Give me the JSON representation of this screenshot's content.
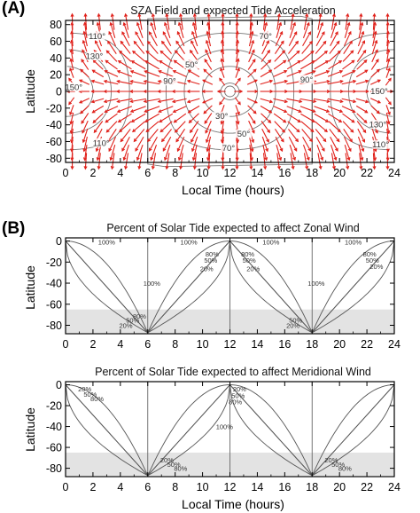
{
  "panel_a": {
    "letter": "(A)",
    "chart_data": {
      "type": "vector-contour",
      "title": "SZA Field and expected Tide Acceleration",
      "xlabel": "Local Time (hours)",
      "ylabel": "Latitude",
      "xlim": [
        0,
        24
      ],
      "ylim": [
        -85,
        85
      ],
      "xticks": [
        "0",
        "2",
        "4",
        "6",
        "8",
        "10",
        "12",
        "14",
        "16",
        "18",
        "20",
        "22",
        "24"
      ],
      "yticks": [
        "80",
        "60",
        "40",
        "20",
        "0",
        "-20",
        "-40",
        "-60",
        "-80"
      ],
      "contour_levels_deg": [
        10,
        30,
        50,
        70,
        90,
        110,
        130,
        150
      ],
      "contour_labels": [
        {
          "text": "110°",
          "x": 2.3,
          "y": 66
        },
        {
          "text": "130°",
          "x": 2.1,
          "y": 42
        },
        {
          "text": "150°",
          "x": 0.6,
          "y": 5
        },
        {
          "text": "110°",
          "x": 2.6,
          "y": -62
        },
        {
          "text": "50°",
          "x": 9.2,
          "y": 32
        },
        {
          "text": "70°",
          "x": 14.6,
          "y": 66
        },
        {
          "text": "90°",
          "x": 7.6,
          "y": 12
        },
        {
          "text": "90°",
          "x": 17.6,
          "y": 14
        },
        {
          "text": "30°",
          "x": 11.4,
          "y": -30
        },
        {
          "text": "50°",
          "x": 13.0,
          "y": -51
        },
        {
          "text": "70°",
          "x": 11.9,
          "y": -68
        },
        {
          "text": "150°",
          "x": 22.9,
          "y": 0
        },
        {
          "text": "130°",
          "x": 22.8,
          "y": -40
        },
        {
          "text": "110°",
          "x": 23.0,
          "y": -64
        }
      ],
      "vector_field": "expected tide acceleration, pointing away from the subsolar point (12 h, 0°)",
      "vector_color": "#e0201a",
      "contour_color": "#777777",
      "vertical_lines_at": [
        6,
        18
      ]
    }
  },
  "panel_b": {
    "letter": "(B)",
    "charts": [
      {
        "type": "line",
        "title": "Percent of Solar Tide expected to affect Zonal Wind",
        "xlabel": "",
        "ylabel": "Latitude",
        "xlim": [
          0,
          24
        ],
        "ylim": [
          -88,
          3
        ],
        "xticks": [
          "0",
          "2",
          "4",
          "6",
          "8",
          "10",
          "12",
          "14",
          "16",
          "18",
          "20",
          "22",
          "24"
        ],
        "yticks": [
          "0",
          "-20",
          "-40",
          "-60",
          "-80"
        ],
        "shaded_band": [
          -87,
          -65
        ],
        "vertical_lines_at": [
          6,
          12,
          18
        ],
        "curve_levels_pct": [
          20,
          50,
          80
        ],
        "labels": [
          {
            "text": "100%",
            "x": 3.0,
            "y": -1
          },
          {
            "text": "100%",
            "x": 9.0,
            "y": -1
          },
          {
            "text": "100%",
            "x": 15.0,
            "y": -1
          },
          {
            "text": "100%",
            "x": 21.0,
            "y": -1
          },
          {
            "text": "80%",
            "x": 10.7,
            "y": -12
          },
          {
            "text": "50%",
            "x": 10.6,
            "y": -18
          },
          {
            "text": "20%",
            "x": 10.3,
            "y": -26
          },
          {
            "text": "80%",
            "x": 13.3,
            "y": -12
          },
          {
            "text": "50%",
            "x": 13.4,
            "y": -18
          },
          {
            "text": "20%",
            "x": 13.7,
            "y": -26
          },
          {
            "text": "80%",
            "x": 22.2,
            "y": -12
          },
          {
            "text": "50%",
            "x": 22.4,
            "y": -18
          },
          {
            "text": "20%",
            "x": 22.7,
            "y": -24
          },
          {
            "text": "100%",
            "x": 6.3,
            "y": -40
          },
          {
            "text": "100%",
            "x": 18.3,
            "y": -40
          },
          {
            "text": "80%",
            "x": 5.4,
            "y": -71
          },
          {
            "text": "50%",
            "x": 4.9,
            "y": -75
          },
          {
            "text": "20%",
            "x": 4.4,
            "y": -80
          },
          {
            "text": "50%",
            "x": 16.8,
            "y": -75
          },
          {
            "text": "20%",
            "x": 16.6,
            "y": -80
          }
        ]
      },
      {
        "type": "line",
        "title": "Percent of Solar Tide expected to affect Meridional Wind",
        "xlabel": "Local Time (hours)",
        "ylabel": "Latitude",
        "xlim": [
          0,
          24
        ],
        "ylim": [
          -88,
          3
        ],
        "xticks": [
          "0",
          "2",
          "4",
          "6",
          "8",
          "10",
          "12",
          "14",
          "16",
          "18",
          "20",
          "22",
          "24"
        ],
        "yticks": [
          "0",
          "-20",
          "-40",
          "-60",
          "-80"
        ],
        "shaded_band": [
          -87,
          -65
        ],
        "vertical_lines_at": [
          6,
          12,
          18
        ],
        "curve_levels_pct": [
          20,
          50,
          80
        ],
        "labels": [
          {
            "text": "20%",
            "x": 1.4,
            "y": -4
          },
          {
            "text": "50%",
            "x": 1.8,
            "y": -9
          },
          {
            "text": "80%",
            "x": 2.3,
            "y": -13
          },
          {
            "text": "20%",
            "x": 12.7,
            "y": -4
          },
          {
            "text": "50%",
            "x": 12.6,
            "y": -10
          },
          {
            "text": "80%",
            "x": 12.4,
            "y": -16
          },
          {
            "text": "100%",
            "x": 11.6,
            "y": -40
          },
          {
            "text": "20%",
            "x": 7.4,
            "y": -72
          },
          {
            "text": "50%",
            "x": 7.9,
            "y": -76
          },
          {
            "text": "80%",
            "x": 8.4,
            "y": -80
          },
          {
            "text": "20%",
            "x": 19.4,
            "y": -72
          },
          {
            "text": "50%",
            "x": 19.9,
            "y": -76
          },
          {
            "text": "80%",
            "x": 20.4,
            "y": -80
          }
        ]
      }
    ]
  }
}
